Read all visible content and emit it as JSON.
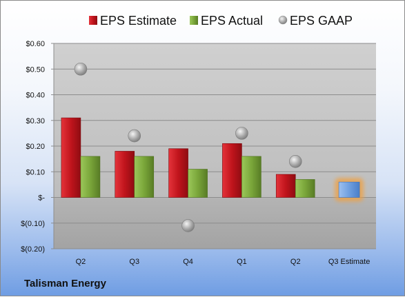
{
  "company": "Talisman Energy",
  "chart_data": {
    "type": "bar",
    "categories": [
      "Q2",
      "Q3",
      "Q4",
      "Q1",
      "Q2",
      "Q3 Estimate"
    ],
    "series": [
      {
        "name": "EPS Estimate",
        "color": "#c0141c",
        "values": [
          0.31,
          0.18,
          0.19,
          0.21,
          0.09,
          null
        ]
      },
      {
        "name": "EPS Actual",
        "color": "#7aa63a",
        "values": [
          0.16,
          0.16,
          0.11,
          0.16,
          0.07,
          null
        ]
      },
      {
        "name": "EPS GAAP",
        "color": "#a8a8a8",
        "marker": "circle",
        "values": [
          0.5,
          0.24,
          -0.11,
          0.25,
          0.14,
          null
        ]
      }
    ],
    "next_estimate": {
      "category": "Q3 Estimate",
      "value": 0.06,
      "color": "#6f9fe0",
      "glow": "#f0a040"
    },
    "ylim": [
      -0.2,
      0.6
    ],
    "yticks": [
      {
        "value": 0.6,
        "label": "$0.60"
      },
      {
        "value": 0.5,
        "label": "$0.50"
      },
      {
        "value": 0.4,
        "label": "$0.40"
      },
      {
        "value": 0.3,
        "label": "$0.30"
      },
      {
        "value": 0.2,
        "label": "$0.20"
      },
      {
        "value": 0.1,
        "label": "$0.10"
      },
      {
        "value": 0.0,
        "label": "$-"
      },
      {
        "value": -0.1,
        "label": "$(0.10)"
      },
      {
        "value": -0.2,
        "label": "$(0.20)"
      }
    ],
    "grid": true,
    "legend_position": "top"
  }
}
